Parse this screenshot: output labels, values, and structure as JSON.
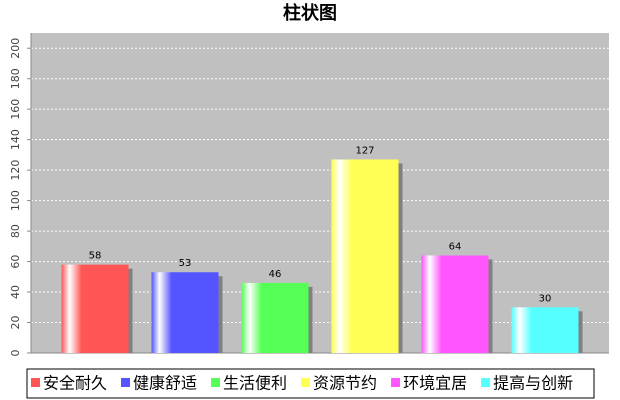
{
  "chart_data": {
    "type": "bar",
    "title": "柱状图",
    "categories": [
      null
    ],
    "series": [
      {
        "name": "安全耐久",
        "color": "#ff5555",
        "values": [
          58
        ]
      },
      {
        "name": "健康舒适",
        "color": "#5555ff",
        "values": [
          53
        ]
      },
      {
        "name": "生活便利",
        "color": "#55ff55",
        "values": [
          46
        ]
      },
      {
        "name": "资源节约",
        "color": "#ffff55",
        "values": [
          127
        ]
      },
      {
        "name": "环境宜居",
        "color": "#ff55ff",
        "values": [
          64
        ]
      },
      {
        "name": "提高与创新",
        "color": "#55ffff",
        "values": [
          30
        ]
      }
    ],
    "ylim": [
      0,
      210
    ],
    "yticks": [
      0,
      20,
      40,
      60,
      80,
      100,
      120,
      140,
      160,
      180,
      200
    ],
    "grid": true,
    "legend": "bottom"
  }
}
